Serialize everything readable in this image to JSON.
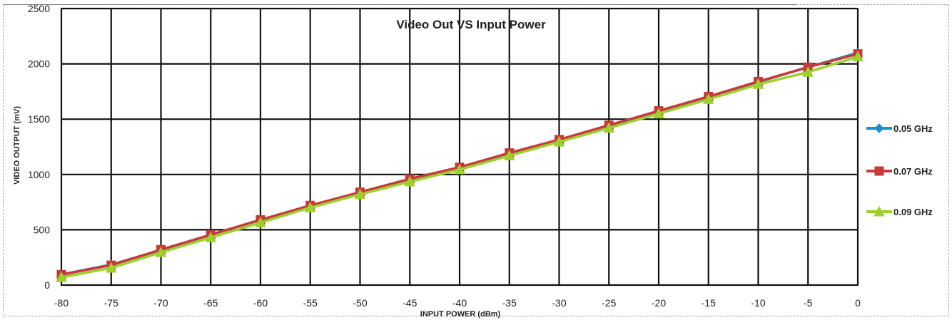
{
  "chart_data": {
    "type": "line",
    "title": "Video Out VS Input Power",
    "xlabel": "INPUT POWER (dBm)",
    "ylabel": "VIDEO OUTPUT (mV)",
    "xlim": [
      -80,
      0
    ],
    "ylim": [
      0,
      2500
    ],
    "xticks": [
      -80,
      -75,
      -70,
      -65,
      -60,
      -55,
      -50,
      -45,
      -40,
      -35,
      -30,
      -25,
      -20,
      -15,
      -10,
      -5,
      0
    ],
    "yticks": [
      0,
      500,
      1000,
      1500,
      2000,
      2500
    ],
    "grid": true,
    "legend_position": "right",
    "x": [
      -80,
      -75,
      -70,
      -65,
      -60,
      -55,
      -50,
      -45,
      -40,
      -35,
      -30,
      -25,
      -20,
      -15,
      -10,
      -5,
      0
    ],
    "series": [
      {
        "name": "0.05 GHz",
        "color": "#1f8fc9",
        "marker": "diamond",
        "values": [
          95,
          185,
          315,
          455,
          590,
          715,
          830,
          935,
          1050,
          1180,
          1305,
          1435,
          1565,
          1700,
          1835,
          1970,
          2100
        ]
      },
      {
        "name": "0.07 GHz",
        "color": "#c83a3a",
        "marker": "square",
        "values": [
          95,
          180,
          320,
          455,
          590,
          720,
          840,
          960,
          1065,
          1195,
          1315,
          1445,
          1575,
          1705,
          1840,
          1970,
          2090
        ]
      },
      {
        "name": "0.09 GHz",
        "color": "#9cd02c",
        "marker": "triangle",
        "values": [
          70,
          155,
          295,
          430,
          565,
          700,
          820,
          935,
          1045,
          1170,
          1295,
          1420,
          1550,
          1680,
          1815,
          1925,
          2065
        ]
      }
    ]
  }
}
